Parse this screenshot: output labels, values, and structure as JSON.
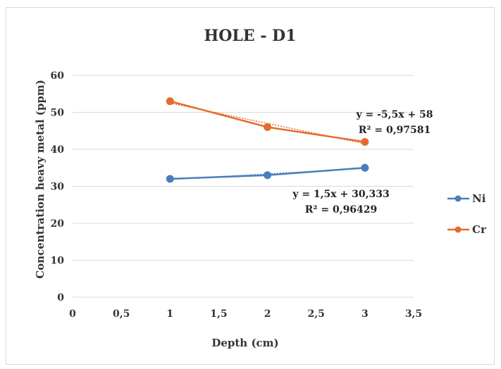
{
  "chart_data": {
    "type": "scatter",
    "title": "HOLE - D1",
    "xlabel": "Depth (cm)",
    "ylabel": "Concentration heavy metal (ppm)",
    "xlim": [
      0,
      3.5
    ],
    "ylim": [
      0,
      60
    ],
    "x_ticks": [
      "0",
      "0,5",
      "1",
      "1,5",
      "2",
      "2,5",
      "3",
      "3,5"
    ],
    "y_ticks": [
      "0",
      "10",
      "20",
      "30",
      "40",
      "50",
      "60"
    ],
    "grid": "horizontal",
    "legend_position": "right",
    "series": [
      {
        "name": "Ni",
        "color": "#4a7ebb",
        "points": [
          {
            "x": 1,
            "y": 32
          },
          {
            "x": 2,
            "y": 33
          },
          {
            "x": 3,
            "y": 35
          }
        ],
        "trendline": {
          "slope": 1.5,
          "intercept": 30.333
        },
        "equation": "y = 1,5x + 30,333",
        "r2": "R² = 0,96429"
      },
      {
        "name": "Cr",
        "color": "#e46c2a",
        "points": [
          {
            "x": 1,
            "y": 53
          },
          {
            "x": 2,
            "y": 46
          },
          {
            "x": 3,
            "y": 42
          }
        ],
        "trendline": {
          "slope": -5.5,
          "intercept": 58
        },
        "equation": "y = -5,5x + 58",
        "r2": "R² = 0,97581"
      }
    ]
  }
}
